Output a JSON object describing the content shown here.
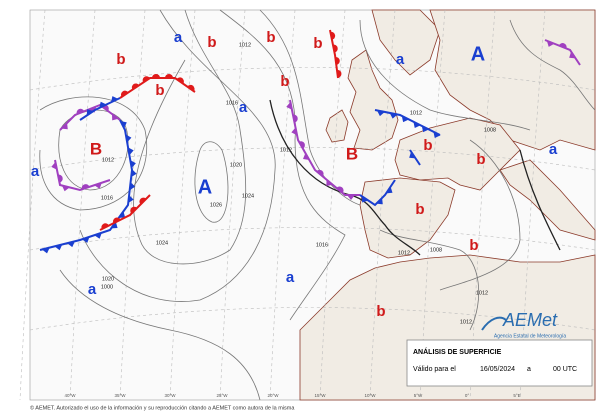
{
  "map": {
    "high_centers": [
      "A",
      "A"
    ],
    "low_centers": [
      "B",
      "B"
    ],
    "minor_highs": [
      "a",
      "a",
      "a",
      "a",
      "a",
      "a",
      "a"
    ],
    "minor_lows": [
      "b",
      "b",
      "b",
      "b",
      "b",
      "b",
      "b",
      "b",
      "b",
      "b",
      "b"
    ],
    "isobar_labels": [
      "1012",
      "1016",
      "1012",
      "1020",
      "1026",
      "1024",
      "1024",
      "1016",
      "1020",
      "1000",
      "1012",
      "1016",
      "1012",
      "1008",
      "1012",
      "1008",
      "1012",
      "1012"
    ],
    "longitude_labels": [
      "40°W",
      "35°W",
      "30°W",
      "25°W",
      "20°W",
      "15°W",
      "10°W",
      "5°W",
      "0°",
      "5°E"
    ]
  },
  "info_box": {
    "title": "ANÁLISIS DE SUPERFICIE",
    "valid_label": "Válido para el",
    "date": "16/05/2024",
    "at": "a",
    "time": "00 UTC"
  },
  "logo": {
    "name": "AEMet",
    "subtitle": "Agencia Estatal de Meteorología"
  },
  "footer": "© AEMET. Autorizado el uso de la información y su reproducción citando a AEMET como autora de la misma"
}
